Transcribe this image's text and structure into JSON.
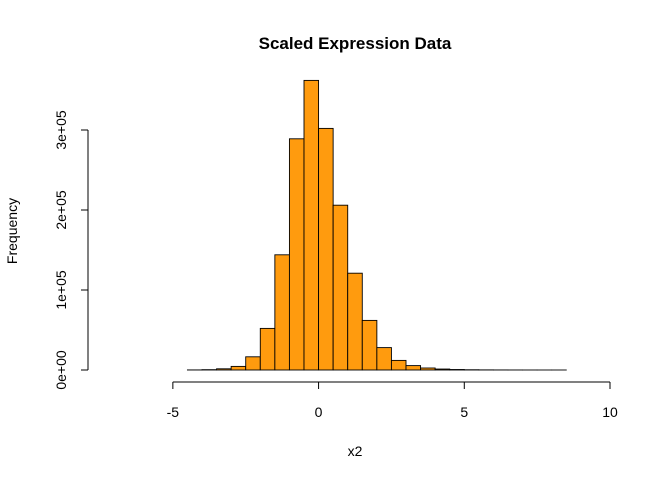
{
  "chart_data": {
    "type": "bar",
    "title": "Scaled Expression Data",
    "xlabel": "x2",
    "ylabel": "Frequency",
    "bar_color": "#FF9B0E",
    "xlim": [
      -7.5,
      10
    ],
    "ylim": [
      0,
      375000
    ],
    "x_ticks": [
      -5,
      0,
      5,
      10
    ],
    "x_tick_labels": [
      "-5",
      "0",
      "5",
      "10"
    ],
    "y_ticks": [
      0,
      100000,
      200000,
      300000
    ],
    "y_tick_labels": [
      "0e+00",
      "1e+05",
      "2e+05",
      "3e+05"
    ],
    "bin_edges": [
      -7.5,
      -7,
      -6.5,
      -6,
      -5.5,
      -5,
      -4.5,
      -4,
      -3.5,
      -3,
      -2.5,
      -2,
      -1.5,
      -1,
      -0.5,
      0,
      0.5,
      1,
      1.5,
      2,
      2.5,
      3,
      3.5,
      4,
      4.5,
      5,
      5.5,
      6,
      6.5,
      7,
      7.5,
      8,
      8.5,
      9,
      9.5,
      10
    ],
    "values": [
      0,
      0,
      0,
      0,
      0,
      0,
      100,
      400,
      1500,
      4500,
      16500,
      52000,
      144000,
      289000,
      362000,
      302000,
      206000,
      121000,
      62000,
      28000,
      12000,
      5500,
      2500,
      1200,
      600,
      300,
      150,
      80,
      40,
      20,
      10,
      5,
      0,
      0,
      0
    ]
  }
}
